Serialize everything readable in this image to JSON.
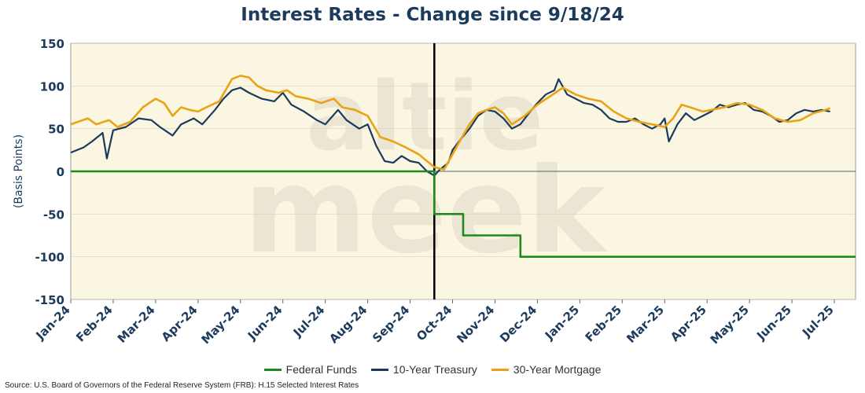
{
  "chart_data": {
    "type": "line",
    "title": "Interest Rates - Change since 9/18/24",
    "xlabel": "",
    "ylabel": "(Basis Points)",
    "ylim": [
      -150,
      150
    ],
    "y_ticks": [
      "150",
      "100",
      "50",
      "0",
      "-50",
      "-100",
      "-150"
    ],
    "x_range": [
      0,
      18.5
    ],
    "x_ticks": [
      "Jan-24",
      "Feb-24",
      "Mar-24",
      "Apr-24",
      "May-24",
      "Jun-24",
      "Jul-24",
      "Aug-24",
      "Sep-24",
      "Oct-24",
      "Nov-24",
      "Dec-24",
      "Jan-25",
      "Feb-25",
      "Mar-25",
      "Apr-25",
      "May-25",
      "Jun-25",
      "Jul-25"
    ],
    "reference_line_x": 8.57,
    "legend_position": "bottom",
    "series": [
      {
        "name": "Federal Funds",
        "color": "#1e8a1e",
        "step": true,
        "points": [
          [
            0,
            0
          ],
          [
            8.57,
            0
          ],
          [
            8.57,
            -50
          ],
          [
            9.25,
            -50
          ],
          [
            9.25,
            -75
          ],
          [
            10.6,
            -75
          ],
          [
            10.6,
            -100
          ],
          [
            18.5,
            -100
          ]
        ]
      },
      {
        "name": "10-Year Treasury",
        "color": "#1b3a5c",
        "points": [
          [
            0,
            22
          ],
          [
            0.3,
            28
          ],
          [
            0.5,
            35
          ],
          [
            0.75,
            45
          ],
          [
            0.85,
            15
          ],
          [
            1.0,
            48
          ],
          [
            1.3,
            52
          ],
          [
            1.6,
            62
          ],
          [
            1.9,
            60
          ],
          [
            2.1,
            52
          ],
          [
            2.4,
            42
          ],
          [
            2.6,
            55
          ],
          [
            2.9,
            62
          ],
          [
            3.1,
            55
          ],
          [
            3.4,
            72
          ],
          [
            3.6,
            85
          ],
          [
            3.8,
            95
          ],
          [
            4.0,
            98
          ],
          [
            4.2,
            92
          ],
          [
            4.5,
            85
          ],
          [
            4.8,
            82
          ],
          [
            5.0,
            92
          ],
          [
            5.2,
            78
          ],
          [
            5.5,
            70
          ],
          [
            5.8,
            60
          ],
          [
            6.0,
            55
          ],
          [
            6.3,
            72
          ],
          [
            6.5,
            60
          ],
          [
            6.8,
            50
          ],
          [
            7.0,
            55
          ],
          [
            7.2,
            30
          ],
          [
            7.4,
            12
          ],
          [
            7.6,
            10
          ],
          [
            7.8,
            18
          ],
          [
            8.0,
            12
          ],
          [
            8.2,
            10
          ],
          [
            8.4,
            0
          ],
          [
            8.57,
            -5
          ],
          [
            8.7,
            2
          ],
          [
            8.9,
            10
          ],
          [
            9.0,
            25
          ],
          [
            9.2,
            38
          ],
          [
            9.4,
            50
          ],
          [
            9.6,
            65
          ],
          [
            9.8,
            72
          ],
          [
            10.0,
            70
          ],
          [
            10.2,
            62
          ],
          [
            10.4,
            50
          ],
          [
            10.6,
            55
          ],
          [
            10.8,
            68
          ],
          [
            11.0,
            80
          ],
          [
            11.2,
            90
          ],
          [
            11.4,
            95
          ],
          [
            11.5,
            108
          ],
          [
            11.7,
            90
          ],
          [
            11.9,
            85
          ],
          [
            12.1,
            80
          ],
          [
            12.3,
            78
          ],
          [
            12.5,
            72
          ],
          [
            12.7,
            62
          ],
          [
            12.9,
            58
          ],
          [
            13.1,
            58
          ],
          [
            13.3,
            62
          ],
          [
            13.5,
            55
          ],
          [
            13.7,
            50
          ],
          [
            13.9,
            55
          ],
          [
            14.0,
            62
          ],
          [
            14.1,
            35
          ],
          [
            14.3,
            55
          ],
          [
            14.5,
            68
          ],
          [
            14.7,
            60
          ],
          [
            14.9,
            65
          ],
          [
            15.1,
            70
          ],
          [
            15.3,
            78
          ],
          [
            15.5,
            75
          ],
          [
            15.7,
            78
          ],
          [
            15.9,
            80
          ],
          [
            16.1,
            72
          ],
          [
            16.3,
            70
          ],
          [
            16.5,
            65
          ],
          [
            16.7,
            58
          ],
          [
            16.9,
            60
          ],
          [
            17.1,
            68
          ],
          [
            17.3,
            72
          ],
          [
            17.5,
            70
          ],
          [
            17.7,
            72
          ],
          [
            17.9,
            70
          ]
        ]
      },
      {
        "name": "30-Year Mortgage",
        "color": "#e8a317",
        "points": [
          [
            0,
            55
          ],
          [
            0.4,
            62
          ],
          [
            0.6,
            55
          ],
          [
            0.9,
            60
          ],
          [
            1.1,
            52
          ],
          [
            1.4,
            58
          ],
          [
            1.7,
            75
          ],
          [
            2.0,
            85
          ],
          [
            2.2,
            80
          ],
          [
            2.4,
            65
          ],
          [
            2.6,
            75
          ],
          [
            2.8,
            72
          ],
          [
            3.0,
            70
          ],
          [
            3.2,
            75
          ],
          [
            3.5,
            82
          ],
          [
            3.8,
            108
          ],
          [
            4.0,
            112
          ],
          [
            4.2,
            110
          ],
          [
            4.4,
            100
          ],
          [
            4.6,
            95
          ],
          [
            4.9,
            92
          ],
          [
            5.1,
            95
          ],
          [
            5.3,
            88
          ],
          [
            5.6,
            85
          ],
          [
            5.9,
            80
          ],
          [
            6.2,
            85
          ],
          [
            6.4,
            75
          ],
          [
            6.7,
            72
          ],
          [
            7.0,
            65
          ],
          [
            7.3,
            40
          ],
          [
            7.6,
            35
          ],
          [
            7.9,
            28
          ],
          [
            8.2,
            20
          ],
          [
            8.57,
            5
          ],
          [
            8.8,
            2
          ],
          [
            9.0,
            20
          ],
          [
            9.2,
            38
          ],
          [
            9.4,
            55
          ],
          [
            9.6,
            68
          ],
          [
            9.8,
            72
          ],
          [
            10.0,
            75
          ],
          [
            10.2,
            68
          ],
          [
            10.4,
            55
          ],
          [
            10.7,
            65
          ],
          [
            11.0,
            78
          ],
          [
            11.3,
            88
          ],
          [
            11.6,
            98
          ],
          [
            11.9,
            90
          ],
          [
            12.2,
            85
          ],
          [
            12.5,
            82
          ],
          [
            12.8,
            70
          ],
          [
            13.1,
            62
          ],
          [
            13.4,
            58
          ],
          [
            13.7,
            55
          ],
          [
            14.0,
            52
          ],
          [
            14.2,
            62
          ],
          [
            14.4,
            78
          ],
          [
            14.6,
            75
          ],
          [
            14.9,
            70
          ],
          [
            15.1,
            72
          ],
          [
            15.4,
            75
          ],
          [
            15.7,
            80
          ],
          [
            16.0,
            78
          ],
          [
            16.3,
            72
          ],
          [
            16.6,
            62
          ],
          [
            16.9,
            58
          ],
          [
            17.2,
            60
          ],
          [
            17.5,
            68
          ],
          [
            17.8,
            72
          ],
          [
            17.9,
            74
          ]
        ]
      }
    ],
    "watermark_text": "altie meek"
  },
  "source_note": "Source: U.S. Board of Governors of the Federal Reserve System (FRB): H.15 Selected Interest Rates"
}
